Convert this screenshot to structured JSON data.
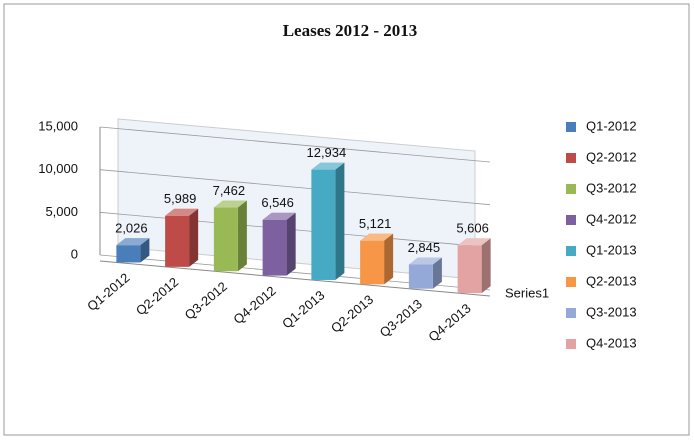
{
  "chart_data": {
    "type": "bar3d",
    "title": "Leases 2012 - 2013",
    "categories": [
      "Q1-2012",
      "Q2-2012",
      "Q3-2012",
      "Q4-2012",
      "Q1-2013",
      "Q2-2013",
      "Q3-2013",
      "Q4-2013"
    ],
    "series": [
      {
        "name": "Series1",
        "values": [
          2026,
          5989,
          7462,
          6546,
          12934,
          5121,
          2845,
          5606
        ],
        "value_labels": [
          "2,026",
          "5,989",
          "7,462",
          "6,546",
          "12,934",
          "5,121",
          "2,845",
          "5,606"
        ],
        "colors": [
          "#4a7ebb",
          "#be4b48",
          "#98b954",
          "#7d60a0",
          "#46aac5",
          "#f79646",
          "#95a9d8",
          "#e2a3a2"
        ]
      }
    ],
    "ylim": [
      0,
      15000
    ],
    "yticks": [
      0,
      {
        "value": 5000,
        "label": "5,000"
      },
      {
        "value": 10000,
        "label": "10,000"
      },
      {
        "value": 15000,
        "label": "15,000"
      }
    ],
    "grid": true,
    "legend": "right"
  }
}
